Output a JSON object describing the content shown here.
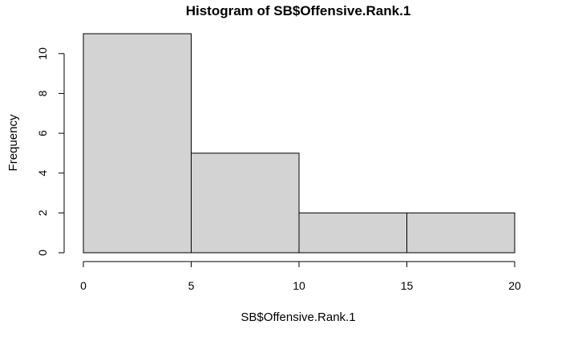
{
  "chart_data": {
    "type": "bar",
    "title": "Histogram of SB$Offensive.Rank.1",
    "xlabel": "SB$Offensive.Rank.1",
    "ylabel": "Frequency",
    "bins": [
      {
        "from": 0,
        "to": 5,
        "count": 11
      },
      {
        "from": 5,
        "to": 10,
        "count": 5
      },
      {
        "from": 10,
        "to": 15,
        "count": 2
      },
      {
        "from": 15,
        "to": 20,
        "count": 2
      }
    ],
    "xlim": [
      0,
      20
    ],
    "ylim": [
      0,
      11
    ],
    "x_ticks": [
      0,
      5,
      10,
      15,
      20
    ],
    "y_ticks": [
      0,
      2,
      4,
      6,
      8,
      10
    ],
    "bar_color": "#d3d3d3",
    "bar_edge_color": "#000000",
    "grid": false,
    "legend": "none"
  }
}
